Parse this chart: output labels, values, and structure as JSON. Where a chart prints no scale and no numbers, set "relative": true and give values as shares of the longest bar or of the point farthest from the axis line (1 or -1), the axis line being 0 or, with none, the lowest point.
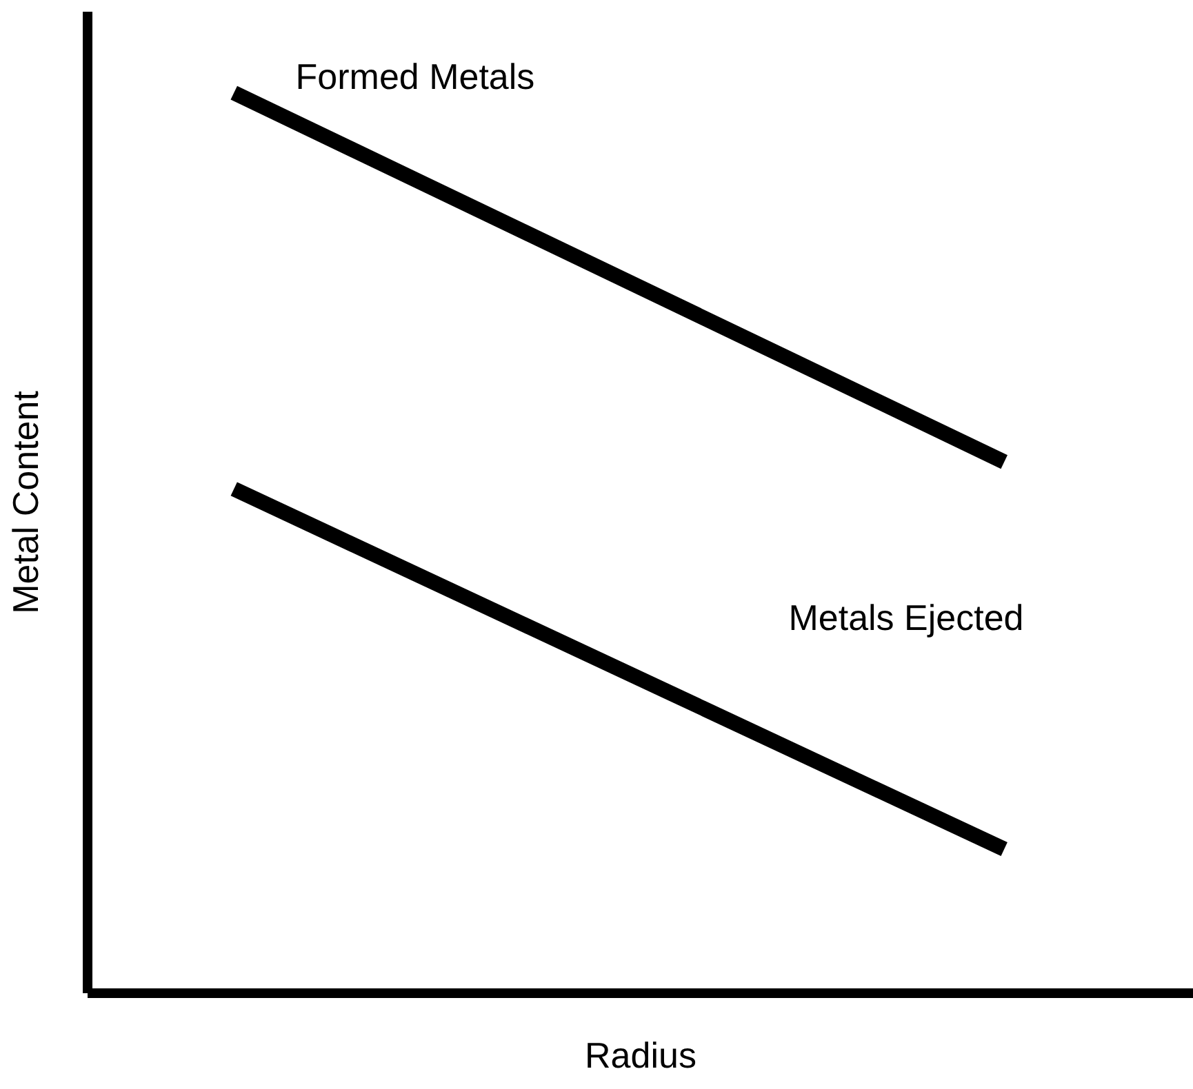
{
  "chart_data": {
    "type": "line",
    "relative": true,
    "xlabel": "Radius",
    "ylabel": "Metal Content",
    "categories": [
      null,
      null
    ],
    "series": [
      {
        "name": "Formed Metals",
        "color": "#000000",
        "values": [
          1,
          0.59
        ]
      },
      {
        "name": "Metals Ejected",
        "color": "#000000",
        "values": [
          0.56,
          0.16
        ]
      }
    ],
    "tick_labels": false
  }
}
